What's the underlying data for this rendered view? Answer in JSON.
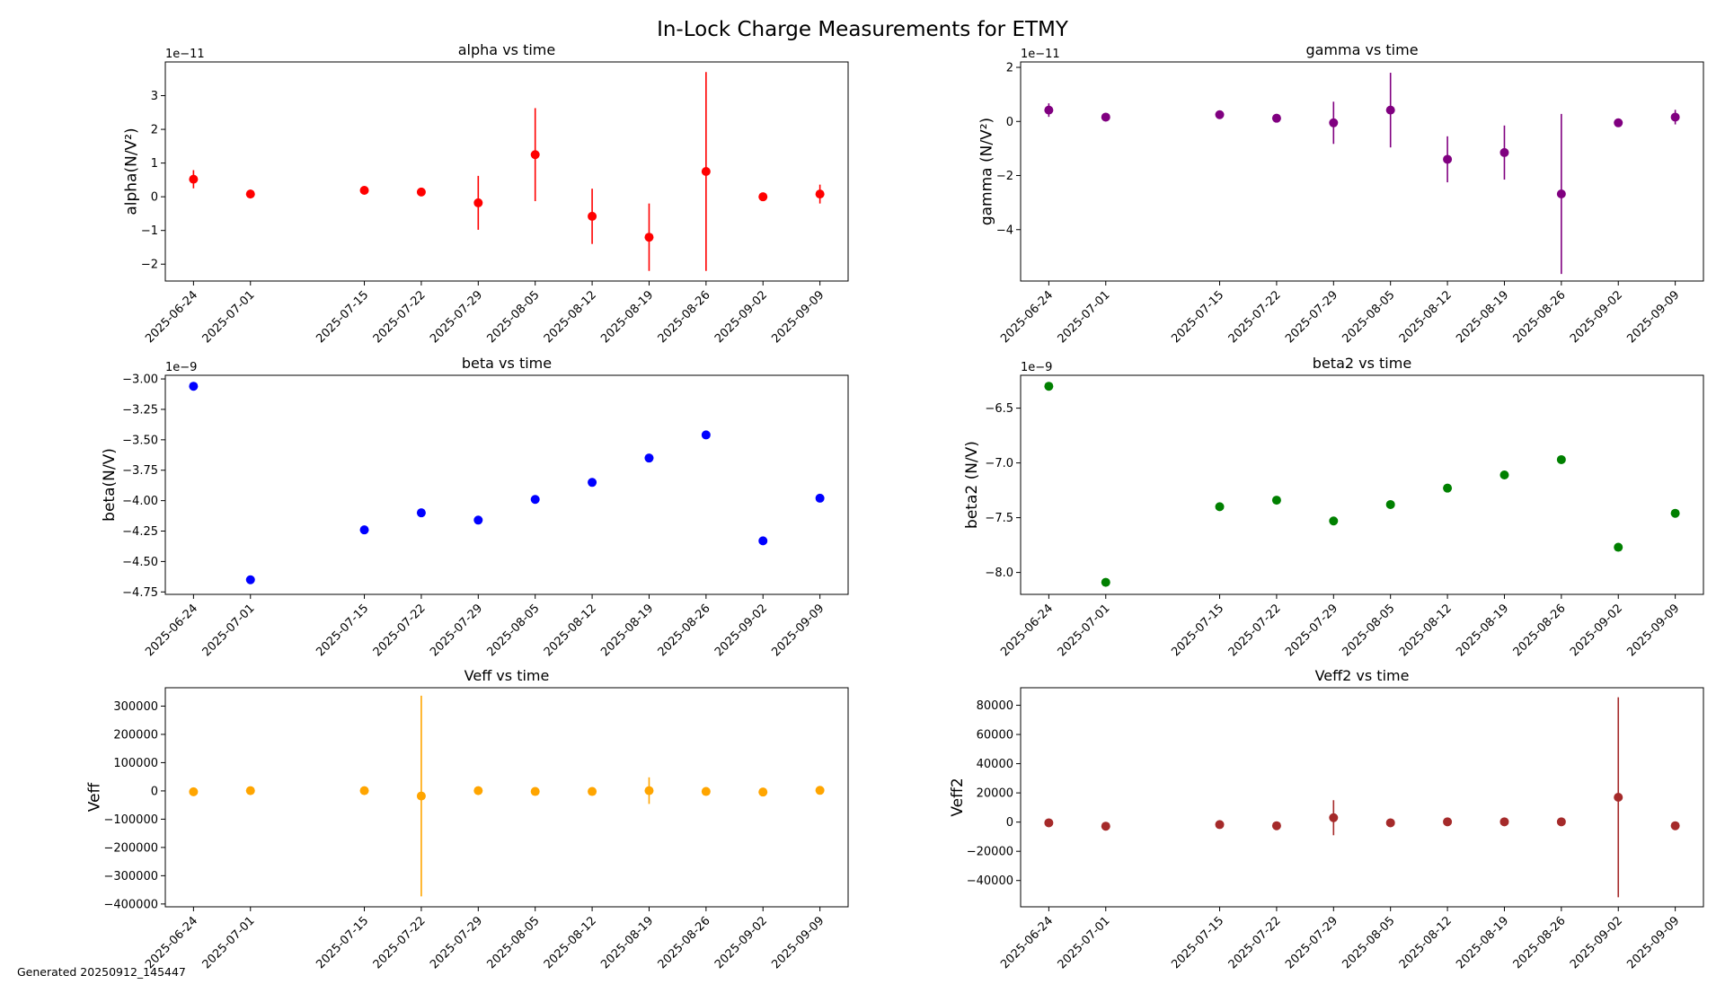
{
  "figure": {
    "title": "In-Lock Charge Measurements for ETMY",
    "footer": "Generated 20250912_145447"
  },
  "dates": [
    "2025-06-24",
    "2025-07-01",
    "2025-07-15",
    "2025-07-22",
    "2025-07-29",
    "2025-08-05",
    "2025-08-12",
    "2025-08-19",
    "2025-08-26",
    "2025-09-02",
    "2025-09-09"
  ],
  "chart_data": [
    {
      "id": "alpha",
      "type": "scatter",
      "title": "alpha vs time",
      "ylabel": "alpha(N/V²)",
      "xlabel": "",
      "color": "#ff0000",
      "offset_text": "1e−11",
      "scale": 1e-11,
      "ylim": [
        -2.5,
        4.0
      ],
      "yticks": [
        -2,
        -1,
        0,
        1,
        2,
        3
      ],
      "ytick_labels": [
        "−2",
        "−1",
        "0",
        "1",
        "2",
        "3"
      ],
      "grid": false,
      "values": [
        0.52,
        0.08,
        0.19,
        0.14,
        -0.18,
        1.25,
        -0.58,
        -1.2,
        0.75,
        0.0,
        0.08
      ],
      "errors": [
        0.27,
        0.13,
        0.07,
        0.06,
        0.8,
        1.38,
        0.82,
        1.0,
        2.95,
        0.05,
        0.28
      ]
    },
    {
      "id": "gamma",
      "type": "scatter",
      "title": "gamma vs time",
      "ylabel": "gamma (N/V²)",
      "xlabel": "",
      "color": "#800080",
      "offset_text": "1e−11",
      "scale": 1e-11,
      "ylim": [
        -5.9,
        2.2
      ],
      "yticks": [
        -4,
        -2,
        0,
        2
      ],
      "ytick_labels": [
        "−4",
        "−2",
        "0",
        "2"
      ],
      "grid": false,
      "values": [
        0.42,
        0.16,
        0.25,
        0.12,
        -0.05,
        0.42,
        -1.4,
        -1.15,
        -2.68,
        -0.05,
        0.16
      ],
      "errors": [
        0.25,
        0.11,
        0.08,
        0.09,
        0.78,
        1.38,
        0.85,
        1.0,
        2.96,
        0.08,
        0.27
      ]
    },
    {
      "id": "beta",
      "type": "scatter",
      "title": "beta vs time",
      "ylabel": "beta(N/V)",
      "xlabel": "",
      "color": "#0000ff",
      "offset_text": "1e−9",
      "scale": 1e-09,
      "ylim": [
        -4.77,
        -2.97
      ],
      "yticks": [
        -4.75,
        -4.5,
        -4.25,
        -4.0,
        -3.75,
        -3.5,
        -3.25,
        -3.0
      ],
      "ytick_labels": [
        "−4.75",
        "−4.50",
        "−4.25",
        "−4.00",
        "−3.75",
        "−3.50",
        "−3.25",
        "−3.00"
      ],
      "grid": false,
      "values": [
        -3.06,
        -4.65,
        -4.24,
        -4.1,
        -4.16,
        -3.99,
        -3.85,
        -3.65,
        -3.46,
        -4.33,
        -3.98
      ],
      "errors": [
        0,
        0,
        0,
        0,
        0,
        0,
        0,
        0,
        0,
        0,
        0
      ]
    },
    {
      "id": "beta2",
      "type": "scatter",
      "title": "beta2 vs time",
      "ylabel": "beta2 (N/V)",
      "xlabel": "",
      "color": "#008000",
      "offset_text": "1e−9",
      "scale": 1e-09,
      "ylim": [
        -8.2,
        -6.2
      ],
      "yticks": [
        -8.0,
        -7.5,
        -7.0,
        -6.5
      ],
      "ytick_labels": [
        "−8.0",
        "−7.5",
        "−7.0",
        "−6.5"
      ],
      "grid": false,
      "values": [
        -6.3,
        -8.09,
        -7.4,
        -7.34,
        -7.53,
        -7.38,
        -7.23,
        -7.11,
        -6.97,
        -7.77,
        -7.46
      ],
      "errors": [
        0,
        0,
        0,
        0,
        0,
        0,
        0,
        0,
        0,
        0,
        0
      ]
    },
    {
      "id": "veff",
      "type": "scatter",
      "title": "Veff vs time",
      "ylabel": "Veff",
      "xlabel": "",
      "color": "#ffa500",
      "offset_text": "",
      "scale": 1,
      "ylim": [
        -410000,
        365000
      ],
      "yticks": [
        -400000,
        -300000,
        -200000,
        -100000,
        0,
        100000,
        200000,
        300000
      ],
      "ytick_labels": [
        "−400000",
        "−300000",
        "−200000",
        "−100000",
        "0",
        "100000",
        "200000",
        "300000"
      ],
      "grid": false,
      "values": [
        -3000,
        1000,
        1000,
        -18000,
        1000,
        -2000,
        -2000,
        1000,
        -2000,
        -4000,
        2000
      ],
      "errors": [
        0,
        0,
        0,
        355000,
        0,
        0,
        0,
        47000,
        0,
        0,
        0
      ]
    },
    {
      "id": "veff2",
      "type": "scatter",
      "title": "Veff2 vs time",
      "ylabel": "Veff2",
      "xlabel": "",
      "color": "#a52a2a",
      "offset_text": "",
      "scale": 1,
      "ylim": [
        -58000,
        92000
      ],
      "yticks": [
        -40000,
        -20000,
        0,
        20000,
        40000,
        60000,
        80000
      ],
      "ytick_labels": [
        "−40000",
        "−20000",
        "0",
        "20000",
        "40000",
        "60000",
        "80000"
      ],
      "grid": false,
      "values": [
        -500,
        -2800,
        -1700,
        -2500,
        3000,
        -500,
        200,
        200,
        200,
        17000,
        -2500
      ],
      "errors": [
        0,
        0,
        0,
        0,
        12000,
        0,
        0,
        0,
        0,
        68500,
        0
      ]
    }
  ]
}
